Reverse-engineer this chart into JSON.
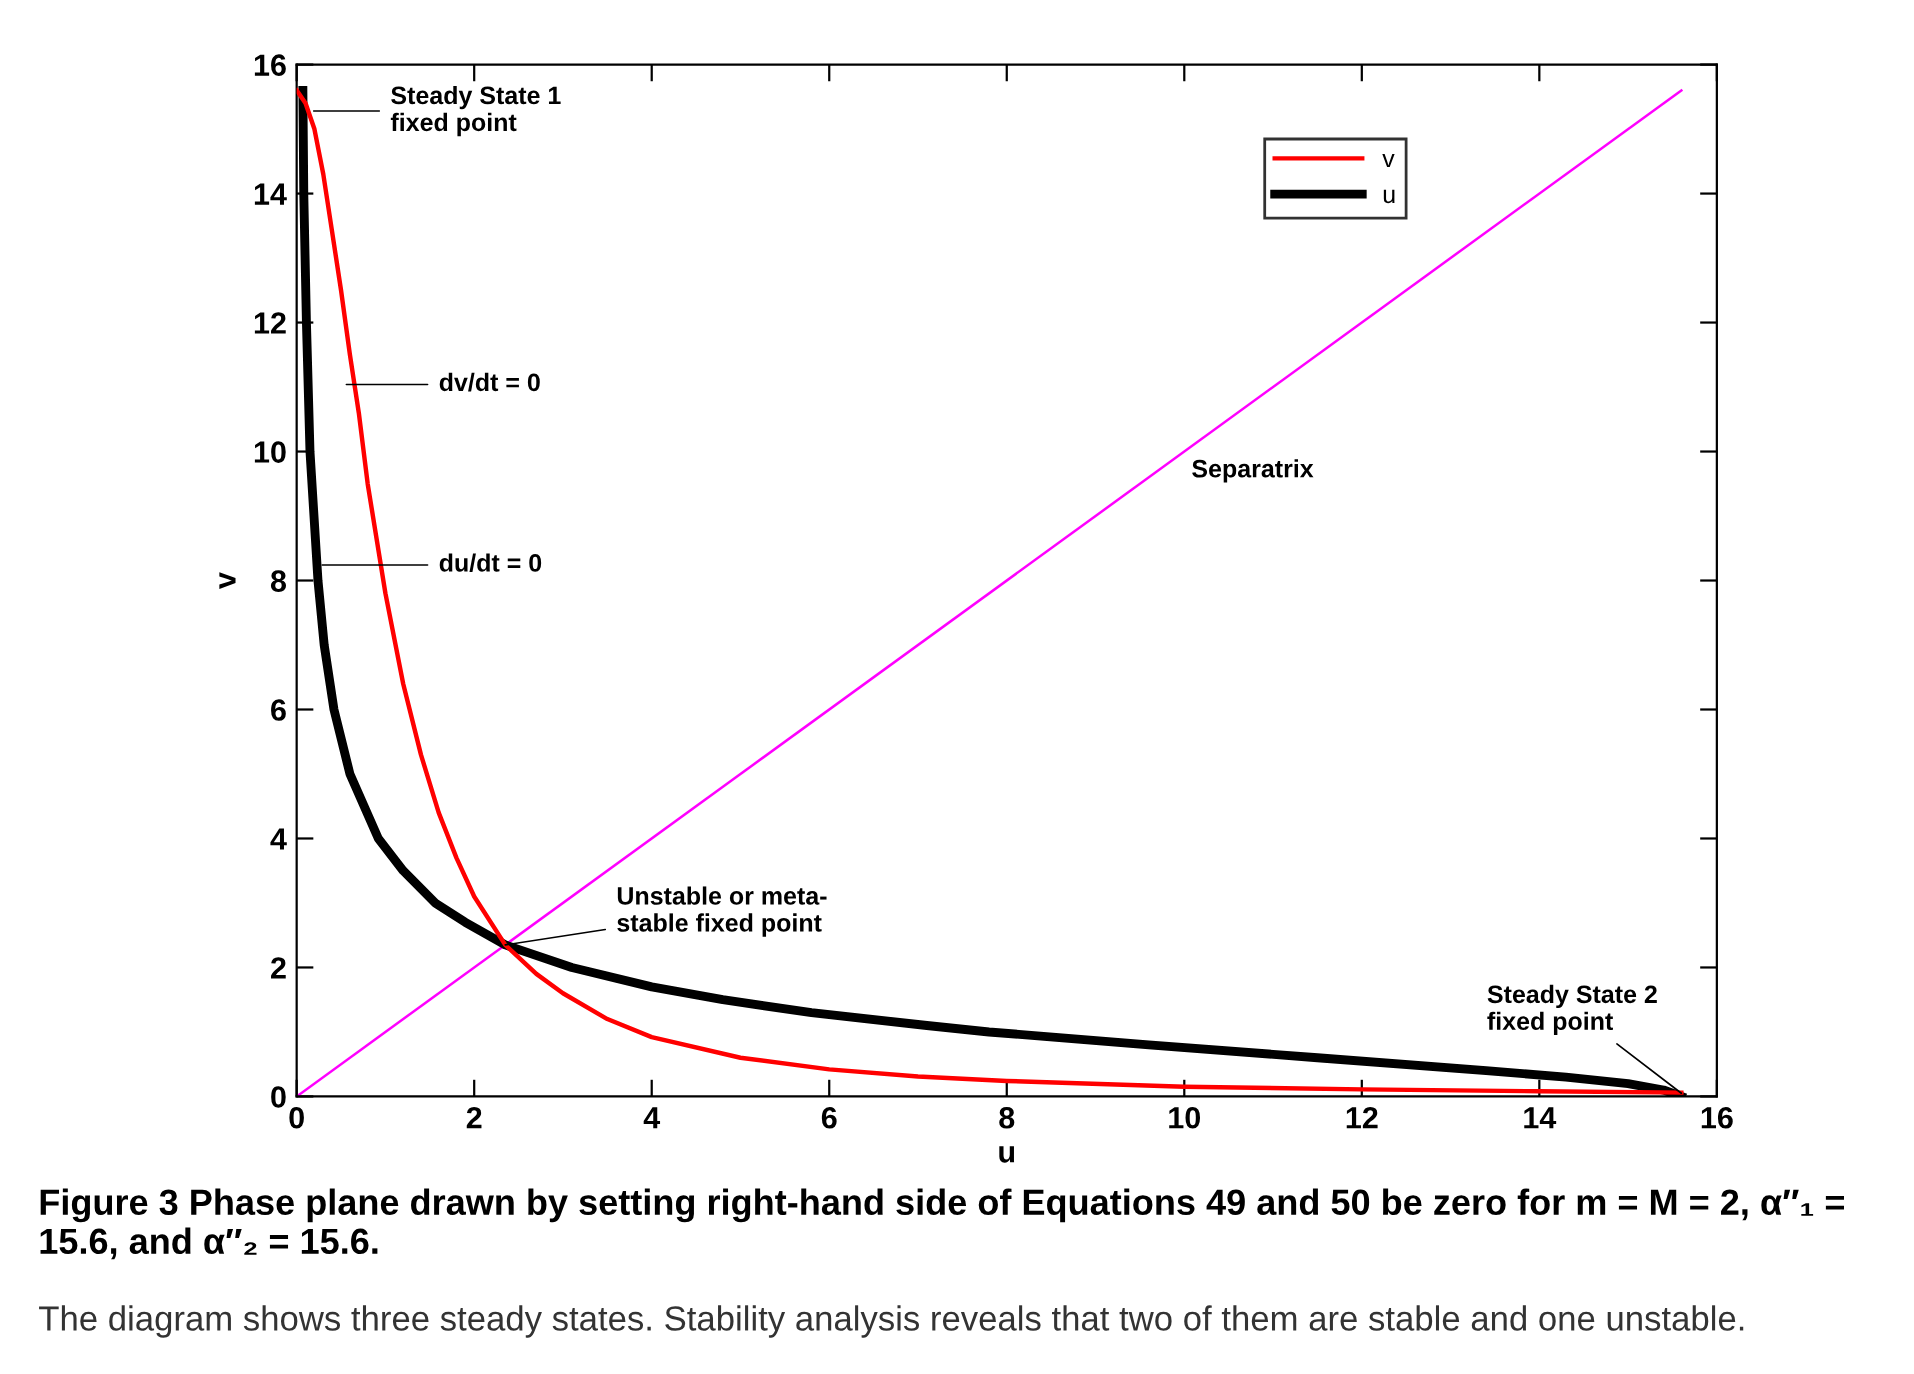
{
  "chart_data": {
    "type": "line",
    "xlabel": "u",
    "ylabel": "v",
    "xlim": [
      0,
      16
    ],
    "ylim": [
      0,
      16
    ],
    "xticks": [
      0,
      2,
      4,
      6,
      8,
      10,
      12,
      14,
      16
    ],
    "yticks": [
      0,
      2,
      4,
      6,
      8,
      10,
      12,
      14,
      16
    ],
    "grid": false,
    "legend": "top right",
    "marker": "none",
    "line_style": "solid",
    "series": [
      {
        "name": "v",
        "color": "#ff0000",
        "x": [
          0,
          0.1,
          0.2,
          0.3,
          0.4,
          0.5,
          0.6,
          0.7,
          0.8,
          1.0,
          1.2,
          1.4,
          1.6,
          1.8,
          2.0,
          2.35,
          2.7,
          3,
          3.5,
          4,
          5,
          6,
          7,
          8,
          10,
          12,
          14,
          15.6
        ],
        "values": [
          15.6,
          15.4,
          15.0,
          14.3,
          13.4,
          12.5,
          11.5,
          10.6,
          9.5,
          7.8,
          6.4,
          5.3,
          4.4,
          3.7,
          3.1,
          2.35,
          1.9,
          1.6,
          1.2,
          0.92,
          0.6,
          0.42,
          0.31,
          0.24,
          0.15,
          0.11,
          0.08,
          0.06
        ]
      },
      {
        "name": "u",
        "color": "#000000",
        "x": [
          0.07,
          0.08,
          0.11,
          0.15,
          0.24,
          0.31,
          0.42,
          0.6,
          0.92,
          1.2,
          1.56,
          1.9,
          2.35,
          3.1,
          4.0,
          4.8,
          5.8,
          7.1,
          7.8,
          9.6,
          11.5,
          13.4,
          14.3,
          15.0,
          15.4,
          15.6
        ],
        "values": [
          15.6,
          14,
          12,
          10,
          8,
          7,
          6,
          5,
          4,
          3.5,
          3,
          2.7,
          2.35,
          2,
          1.7,
          1.5,
          1.3,
          1.1,
          1.0,
          0.8,
          0.6,
          0.4,
          0.3,
          0.2,
          0.1,
          0
        ]
      },
      {
        "color": "#ff00ff",
        "x": [
          0,
          15.6
        ],
        "values": [
          0,
          15.6
        ]
      }
    ],
    "annotations": [
      "Steady State 1\nfixed point",
      "dv/dt = 0",
      "du/dt = 0",
      {
        "text": "Unstable or meta-\nstable fixed point",
        "x": 2.35,
        "y": 2.35
      },
      {
        "text": "Steady State 2\nfixed point",
        "x": 15.6,
        "y": 0.05
      },
      "Separatrix",
      "Figure 3 Phase plane drawn by setting right-hand side of Equations 49 and 50 be zero for m = M = 2, α″₁ = 15.6, and α″₂ = 15.6.",
      "The diagram shows three steady states. Stability analysis reveals that two of them are stable and one unstable."
    ]
  }
}
